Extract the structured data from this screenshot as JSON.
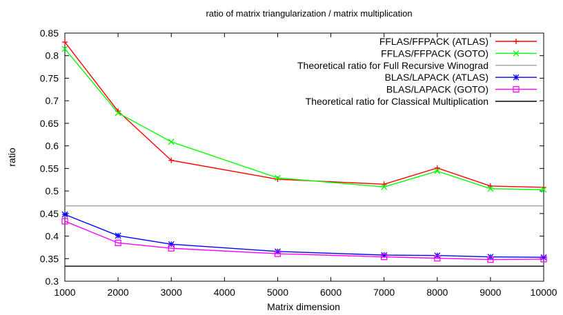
{
  "chart_data": {
    "type": "line",
    "title": "ratio of matrix triangularization / matrix multiplication",
    "xlabel": "Matrix dimension",
    "ylabel": "ratio",
    "xlim": [
      1000,
      10000
    ],
    "ylim": [
      0.3,
      0.85
    ],
    "xticks": [
      1000,
      2000,
      3000,
      4000,
      5000,
      6000,
      7000,
      8000,
      9000,
      10000
    ],
    "yticks": [
      0.3,
      0.35,
      0.4,
      0.45,
      0.5,
      0.55,
      0.6,
      0.65,
      0.7,
      0.75,
      0.8,
      0.85
    ],
    "grid": false,
    "legend_position": "top-right",
    "series": [
      {
        "name": "FFLAS/FFPACK (ATLAS)",
        "color": "#ff0000",
        "marker": "plus",
        "points": [
          [
            1000,
            0.83
          ],
          [
            2000,
            0.677
          ],
          [
            3000,
            0.568
          ],
          [
            5000,
            0.526
          ],
          [
            7000,
            0.515
          ],
          [
            8000,
            0.551
          ],
          [
            9000,
            0.511
          ],
          [
            10000,
            0.508
          ]
        ]
      },
      {
        "name": "FFLAS/FFPACK (GOTO)",
        "color": "#00ff00",
        "marker": "cross",
        "points": [
          [
            1000,
            0.815
          ],
          [
            2000,
            0.673
          ],
          [
            3000,
            0.609
          ],
          [
            5000,
            0.529
          ],
          [
            7000,
            0.509
          ],
          [
            8000,
            0.544
          ],
          [
            9000,
            0.505
          ],
          [
            10000,
            0.503
          ]
        ]
      },
      {
        "name": "Theoretical ratio for Full Recursive Winograd",
        "color": "#a0a0a0",
        "marker": "none",
        "points": [
          [
            1000,
            0.467
          ],
          [
            10000,
            0.467
          ]
        ]
      },
      {
        "name": "BLAS/LAPACK  (ATLAS)",
        "color": "#0000ff",
        "marker": "star",
        "points": [
          [
            1000,
            0.448
          ],
          [
            2000,
            0.401
          ],
          [
            3000,
            0.382
          ],
          [
            5000,
            0.366
          ],
          [
            7000,
            0.358
          ],
          [
            8000,
            0.357
          ],
          [
            9000,
            0.354
          ],
          [
            10000,
            0.353
          ]
        ]
      },
      {
        "name": "BLAS/LAPACK  (GOTO)",
        "color": "#ff00ff",
        "marker": "square",
        "points": [
          [
            1000,
            0.433
          ],
          [
            2000,
            0.385
          ],
          [
            3000,
            0.373
          ],
          [
            5000,
            0.361
          ],
          [
            7000,
            0.354
          ],
          [
            8000,
            0.351
          ],
          [
            9000,
            0.348
          ],
          [
            10000,
            0.349
          ]
        ]
      },
      {
        "name": "Theoretical ratio for Classical Multiplication",
        "color": "#000000",
        "marker": "none",
        "points": [
          [
            1000,
            0.3333
          ],
          [
            10000,
            0.3333
          ]
        ]
      }
    ]
  }
}
